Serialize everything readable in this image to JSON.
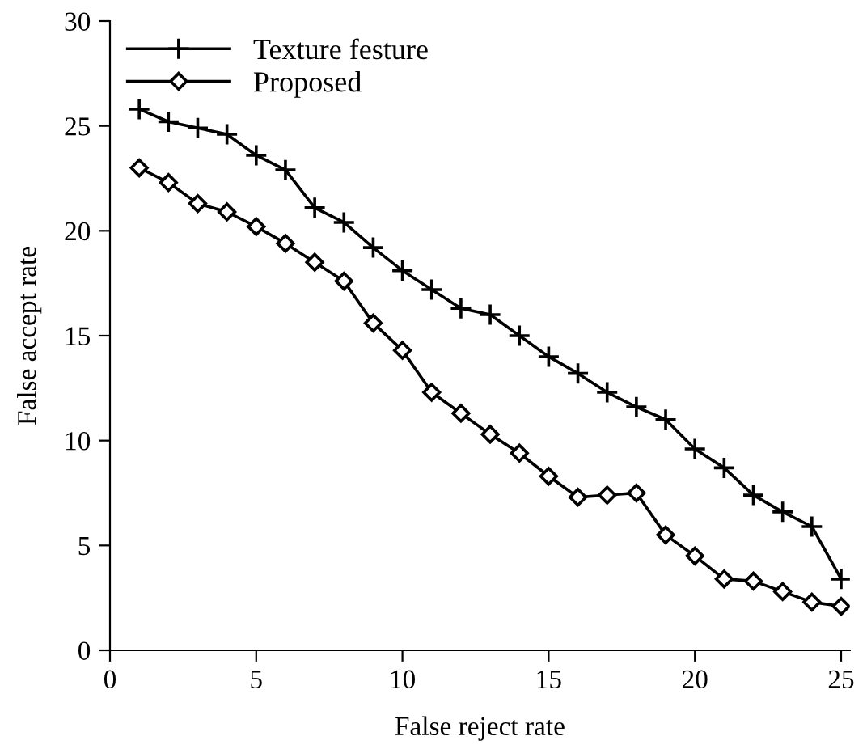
{
  "chart_data": {
    "type": "line",
    "xlabel": "False reject rate",
    "ylabel": "False accept rate",
    "x": [
      1,
      2,
      3,
      4,
      5,
      6,
      7,
      8,
      9,
      10,
      11,
      12,
      13,
      14,
      15,
      16,
      17,
      18,
      19,
      20,
      21,
      22,
      23,
      24,
      25
    ],
    "series": [
      {
        "name": "Texture festure",
        "color": "#000000",
        "marker": "cross",
        "values": [
          25.8,
          25.2,
          24.9,
          24.6,
          23.6,
          22.9,
          21.1,
          20.4,
          19.2,
          18.1,
          17.2,
          16.3,
          16.0,
          15.0,
          14.0,
          13.2,
          12.3,
          11.6,
          11.0,
          9.6,
          8.7,
          7.4,
          6.6,
          5.9,
          3.4
        ]
      },
      {
        "name": "Proposed",
        "color": "#000000",
        "marker": "diamond",
        "values": [
          23.0,
          22.3,
          21.3,
          20.9,
          20.2,
          19.4,
          18.5,
          17.6,
          15.6,
          14.3,
          12.3,
          11.3,
          10.3,
          9.4,
          8.3,
          7.3,
          7.4,
          7.5,
          5.5,
          4.5,
          3.4,
          3.3,
          2.8,
          2.3,
          2.1
        ]
      }
    ],
    "xlim": [
      0,
      25.3
    ],
    "xticks": [
      0,
      5,
      10,
      15,
      20,
      25
    ],
    "ylim": [
      0,
      30
    ],
    "yticks": [
      0,
      5,
      10,
      15,
      20,
      25,
      30
    ],
    "grid": false,
    "legend": "top left",
    "line_style": "solid"
  }
}
